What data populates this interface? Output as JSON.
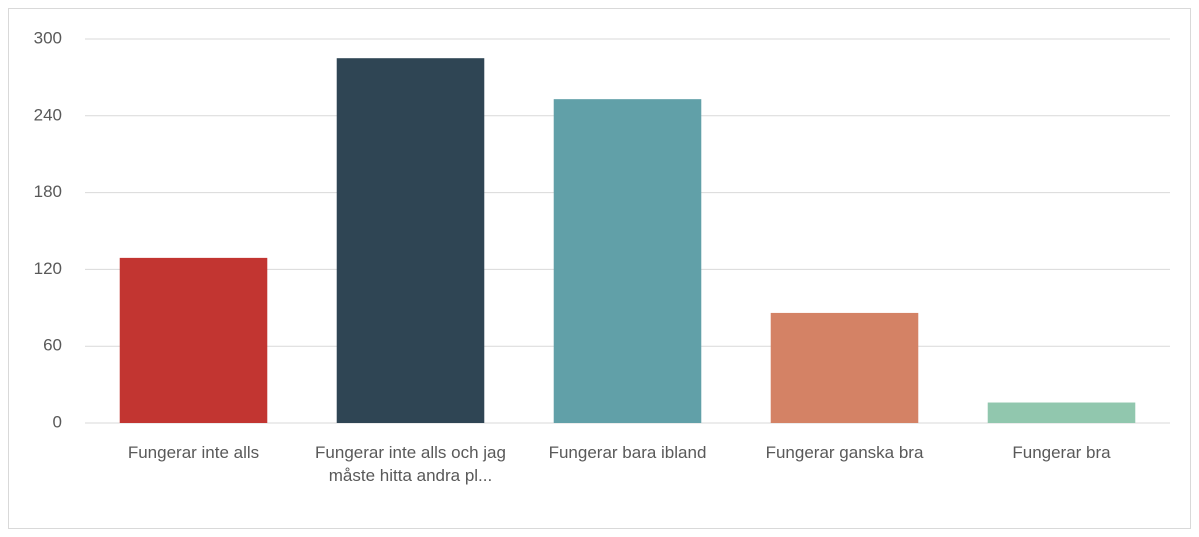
{
  "chart_data": {
    "type": "bar",
    "categories": [
      "Fungerar inte alls",
      "Fungerar inte alls och jag måste hitta andra pl...",
      "Fungerar bara ibland",
      "Fungerar ganska bra",
      "Fungerar bra"
    ],
    "values": [
      129,
      285,
      253,
      86,
      16
    ],
    "colors": [
      "#c23531",
      "#2f4554",
      "#61a0a8",
      "#d48265",
      "#91c7ae"
    ],
    "ylim": [
      0,
      300
    ],
    "yticks": [
      0,
      60,
      120,
      180,
      240,
      300
    ],
    "grid": true
  }
}
